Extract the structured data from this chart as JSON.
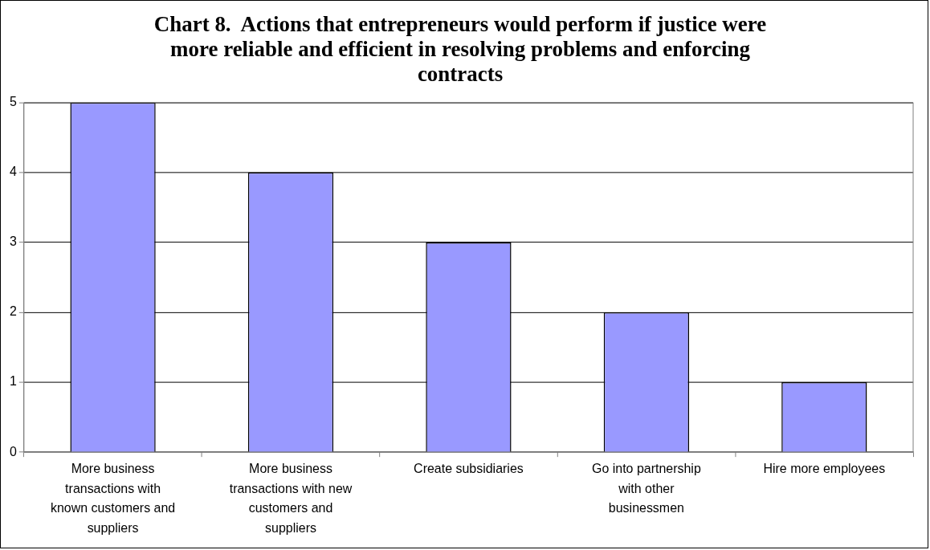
{
  "chart_data": {
    "type": "bar",
    "title": "Chart 8.  Actions that entrepreneurs would perform if justice were more reliable and efficient in resolving problems and enforcing contracts",
    "categories": [
      "More business transactions with known customers and suppliers",
      "More business transactions with new customers and suppliers",
      "Create subsidiaries",
      "Go into partnership with other businessmen",
      "Hire more employees"
    ],
    "values": [
      5,
      4,
      3,
      2,
      1
    ],
    "color": "#9999ff",
    "ylim": [
      0,
      5
    ],
    "yticks": [
      0,
      1,
      2,
      3,
      4,
      5
    ],
    "grid": "y",
    "legend": false
  }
}
